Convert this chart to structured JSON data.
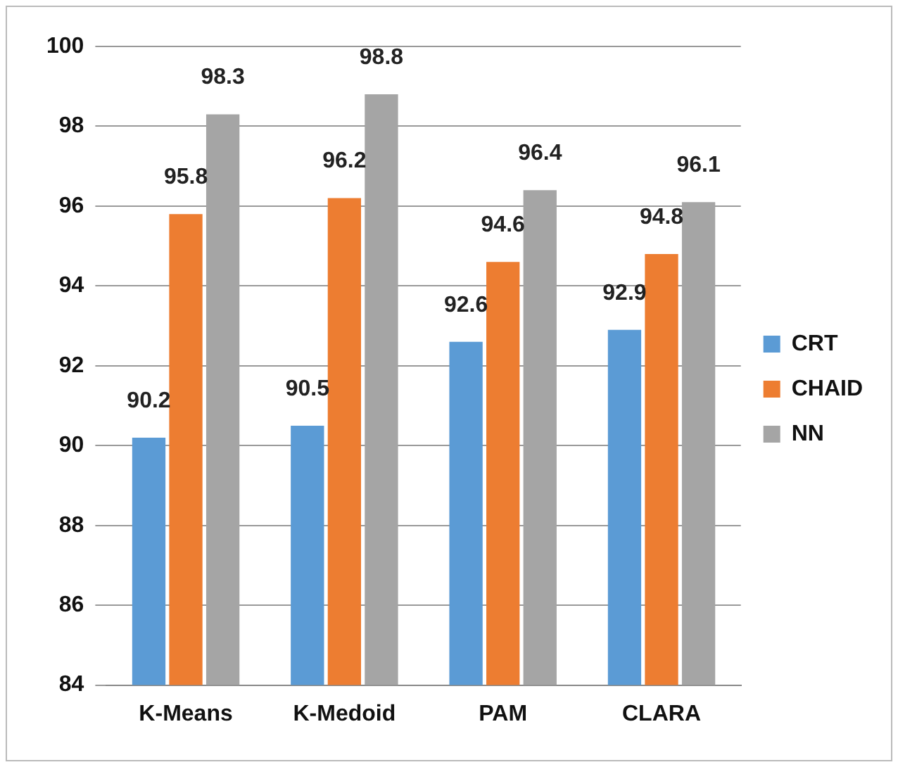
{
  "chart_data": {
    "type": "bar",
    "categories": [
      "K-Means",
      "K-Medoid",
      "PAM",
      "CLARA"
    ],
    "series": [
      {
        "name": "CRT",
        "color": "#5b9bd5",
        "values": [
          90.2,
          90.5,
          92.6,
          92.9
        ]
      },
      {
        "name": "CHAID",
        "color": "#ed7d31",
        "values": [
          95.8,
          96.2,
          94.6,
          94.8
        ]
      },
      {
        "name": "NN",
        "color": "#a5a5a5",
        "values": [
          98.3,
          98.8,
          96.4,
          96.1
        ]
      }
    ],
    "ylim": [
      84,
      100
    ],
    "yticks": [
      84,
      86,
      88,
      90,
      92,
      94,
      96,
      98,
      100
    ],
    "grid": "y",
    "legend": "right",
    "data_labels": true
  }
}
